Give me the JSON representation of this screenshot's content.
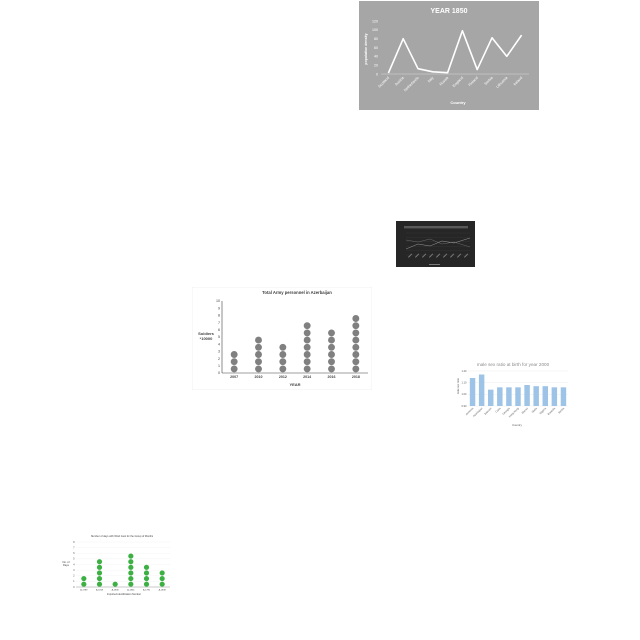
{
  "chart_data": [
    {
      "type": "line",
      "title": "YEAR 1850",
      "xlabel": "Country",
      "ylabel": "population density",
      "categories": [
        "Scotland",
        "Austria",
        "Netherlands",
        "Italy",
        "Russia",
        "England",
        "Finland",
        "Serbia",
        "Lithuania",
        "Ireland"
      ],
      "values": [
        2,
        80,
        12,
        5,
        3,
        98,
        10,
        82,
        40,
        88
      ],
      "ylim": [
        0,
        120
      ],
      "yticks": [
        0,
        20,
        40,
        60,
        80,
        100,
        120
      ],
      "grid": false,
      "colors": {
        "background": "#a6a6a6",
        "line": "#ffffff",
        "text": "#ffffff"
      }
    },
    {
      "type": "line",
      "title": "",
      "xlabel": "",
      "ylabel": "",
      "categories": [],
      "grid": true,
      "colors": {
        "background": "#262626",
        "line": "#9a9a9a"
      }
    },
    {
      "type": "scatter",
      "title": "Total Army personnel in Azerbaijan",
      "xlabel": "YEAR",
      "ylabel": "Soldiers *10000",
      "categories": [
        "2007",
        "2010",
        "2012",
        "2014",
        "2016",
        "2018"
      ],
      "values": [
        3,
        5,
        4,
        7,
        6,
        8
      ],
      "ylim": [
        0,
        10
      ],
      "yticks": [
        0,
        1,
        2,
        3,
        4,
        5,
        6,
        7,
        8,
        9,
        10
      ],
      "grid": false,
      "colors": {
        "marker": "#808080",
        "axis": "#404040"
      }
    },
    {
      "type": "bar",
      "title": "male sex ratio at birth for year 2000",
      "xlabel": "Country",
      "ylabel": "male sex ratio",
      "categories": [
        "Armenia",
        "Azerbaijan",
        "Bahrain",
        "Cuba",
        "Georgia",
        "Hong Kong",
        "Macau",
        "Malta",
        "Nigeria",
        "Rwanda",
        "Serbia"
      ],
      "values": [
        1.14,
        1.17,
        1.04,
        1.06,
        1.06,
        1.06,
        1.08,
        1.07,
        1.07,
        1.06,
        1.06
      ],
      "ylim": [
        0.9,
        1.2
      ],
      "yticks": [
        0.9,
        1.0,
        1.1,
        1.2
      ],
      "grid": true,
      "colors": {
        "bar": "#9dc3e6",
        "title": "#8c8c8c"
      }
    },
    {
      "type": "scatter",
      "title": "Number of days with Wind Gust for the Group of Months",
      "xlabel": "Imported identification Number",
      "ylabel": "No. of Days",
      "categories": [
        "A-1789",
        "A-1818",
        "A-1836",
        "A-1854",
        "A-1790",
        "A-1838"
      ],
      "values": [
        2,
        5,
        1,
        6,
        4,
        3
      ],
      "ylim": [
        0,
        8
      ],
      "yticks": [
        0,
        1,
        2,
        3,
        4,
        5,
        6,
        7,
        8
      ],
      "grid": true,
      "colors": {
        "marker": "#3cb043",
        "axis": "#808080"
      }
    }
  ]
}
